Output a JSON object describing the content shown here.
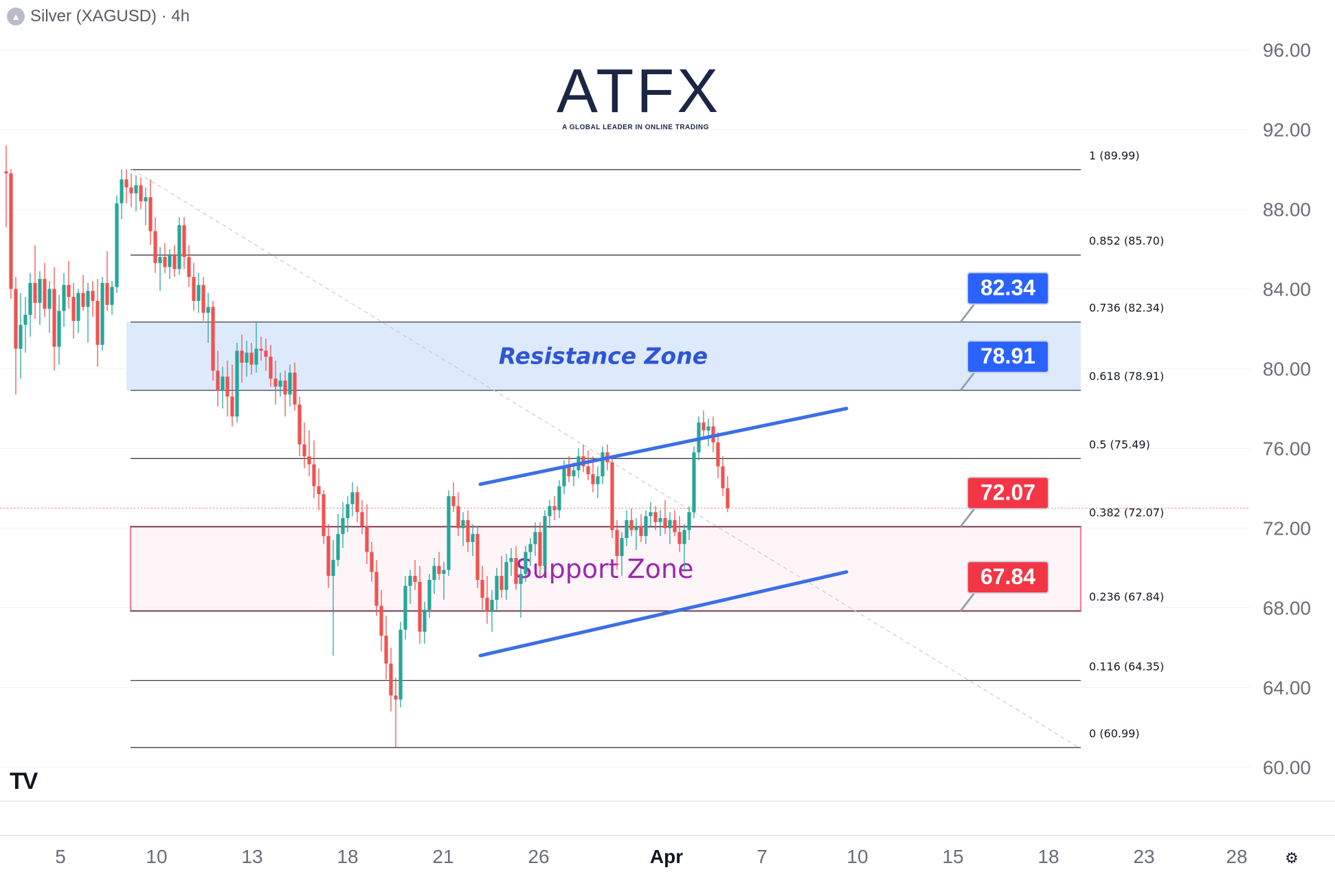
{
  "header": {
    "symbol": "Silver (XAGUSD) · 4h"
  },
  "logo": {
    "name": "ATFX",
    "tagline": "A GLOBAL LEADER IN ONLINE TRADING"
  },
  "colors": {
    "up": "#26a69a",
    "down": "#ef5350",
    "channel": "#3b6fe6",
    "resistance_fill": "#d6e6fb",
    "support_border": "#e0245e",
    "label_blue": "#2962ff",
    "label_red": "#f23645"
  },
  "chart_data": {
    "type": "candlestick",
    "title": "Silver (XAGUSD) · 4h",
    "y_axis": {
      "ticks": [
        "96.00",
        "92.00",
        "88.00",
        "84.00",
        "80.00",
        "76.00",
        "72.00",
        "68.00",
        "64.00",
        "60.00"
      ],
      "min": 59.0,
      "max": 97.5,
      "side": "right"
    },
    "x_axis": {
      "ticks": [
        "5",
        "10",
        "13",
        "18",
        "21",
        "26",
        "Apr",
        "7",
        "10",
        "15",
        "18",
        "23",
        "28"
      ]
    },
    "fib_levels": [
      {
        "label": "1 (89.99)",
        "value": 89.99
      },
      {
        "label": "0.852 (85.70)",
        "value": 85.7
      },
      {
        "label": "0.736 (82.34)",
        "value": 82.34
      },
      {
        "label": "0.618 (78.91)",
        "value": 78.91
      },
      {
        "label": "0.5 (75.49)",
        "value": 75.49
      },
      {
        "label": "0.382 (72.07)",
        "value": 72.07
      },
      {
        "label": "0.236 (67.84)",
        "value": 67.84
      },
      {
        "label": "0.116 (64.35)",
        "value": 64.35
      },
      {
        "label": "0 (60.99)",
        "value": 60.99
      }
    ],
    "zones": [
      {
        "label": "Resistance Zone",
        "low": 78.91,
        "high": 82.34,
        "style": "resistance"
      },
      {
        "label": "Support Zone",
        "low": 67.84,
        "high": 72.07,
        "style": "support"
      }
    ],
    "price_labels": [
      {
        "text": "82.34",
        "value": 82.34,
        "color": "blue"
      },
      {
        "text": "78.91",
        "value": 78.91,
        "color": "blue"
      },
      {
        "text": "72.07",
        "value": 72.07,
        "color": "red"
      },
      {
        "text": "67.84",
        "value": 67.84,
        "color": "red"
      }
    ],
    "current_price": 73.0,
    "channel": {
      "upper": [
        {
          "t": 69,
          "v": 74.2
        },
        {
          "t": 123,
          "v": 78.0
        }
      ],
      "lower": [
        {
          "t": 69,
          "v": 65.6
        },
        {
          "t": 123,
          "v": 69.8
        }
      ]
    },
    "trendline": [
      {
        "t": 19,
        "v": 90.0
      },
      {
        "t": 157,
        "v": 61.0
      }
    ],
    "candles": [
      [
        0,
        89.9,
        91.2,
        87.1,
        89.8
      ],
      [
        1,
        89.8,
        90.0,
        83.5,
        84.0
      ],
      [
        2,
        84.0,
        84.6,
        78.7,
        81.0
      ],
      [
        3,
        81.0,
        83.8,
        79.5,
        82.2
      ],
      [
        4,
        82.2,
        83.6,
        80.8,
        82.7
      ],
      [
        5,
        82.7,
        84.8,
        81.6,
        84.3
      ],
      [
        6,
        84.3,
        86.2,
        82.5,
        83.3
      ],
      [
        7,
        83.3,
        84.9,
        82.2,
        84.5
      ],
      [
        8,
        84.5,
        85.3,
        82.6,
        83.0
      ],
      [
        9,
        83.0,
        84.4,
        81.8,
        84.0
      ],
      [
        10,
        84.0,
        85.1,
        79.9,
        81.1
      ],
      [
        11,
        81.1,
        83.7,
        80.2,
        82.9
      ],
      [
        12,
        82.9,
        84.8,
        82.1,
        84.2
      ],
      [
        13,
        84.2,
        85.4,
        83.0,
        83.6
      ],
      [
        14,
        83.6,
        84.3,
        81.5,
        82.4
      ],
      [
        15,
        82.4,
        84.0,
        81.8,
        83.8
      ],
      [
        16,
        83.8,
        84.7,
        82.9,
        83.1
      ],
      [
        17,
        83.1,
        84.3,
        81.3,
        83.9
      ],
      [
        18,
        83.9,
        84.4,
        82.6,
        83.4
      ],
      [
        19,
        83.4,
        84.5,
        80.1,
        81.2
      ],
      [
        20,
        81.2,
        84.6,
        80.9,
        84.3
      ],
      [
        21,
        84.3,
        85.9,
        82.9,
        83.2
      ],
      [
        22,
        83.2,
        84.4,
        82.7,
        84.1
      ],
      [
        23,
        84.1,
        88.7,
        83.8,
        88.3
      ],
      [
        24,
        88.3,
        90.0,
        87.5,
        89.5
      ],
      [
        25,
        89.5,
        90.0,
        88.3,
        89.1
      ],
      [
        26,
        89.1,
        89.8,
        88.1,
        88.8
      ],
      [
        27,
        88.8,
        89.7,
        87.9,
        89.2
      ],
      [
        28,
        89.2,
        89.6,
        88.0,
        88.4
      ],
      [
        29,
        88.4,
        89.1,
        87.2,
        88.6
      ],
      [
        30,
        88.6,
        89.5,
        86.2,
        86.9
      ],
      [
        31,
        86.9,
        87.6,
        84.8,
        85.3
      ],
      [
        32,
        85.3,
        86.1,
        83.9,
        85.6
      ],
      [
        33,
        85.6,
        86.3,
        84.8,
        85.1
      ],
      [
        34,
        85.1,
        86.0,
        84.5,
        85.7
      ],
      [
        35,
        85.7,
        86.2,
        84.6,
        85.0
      ],
      [
        36,
        85.0,
        87.6,
        84.7,
        87.2
      ],
      [
        37,
        87.2,
        87.6,
        85.0,
        85.6
      ],
      [
        38,
        85.6,
        86.2,
        84.1,
        84.6
      ],
      [
        39,
        84.6,
        85.3,
        82.9,
        83.4
      ],
      [
        40,
        83.4,
        84.8,
        82.8,
        84.2
      ],
      [
        41,
        84.2,
        84.6,
        82.4,
        82.8
      ],
      [
        42,
        82.8,
        83.8,
        81.3,
        83.1
      ],
      [
        43,
        83.1,
        83.4,
        79.4,
        79.9
      ],
      [
        44,
        79.9,
        80.9,
        78.1,
        78.9
      ],
      [
        45,
        78.9,
        80.1,
        78.0,
        79.6
      ],
      [
        46,
        79.6,
        80.4,
        77.6,
        78.6
      ],
      [
        47,
        78.6,
        80.2,
        77.1,
        77.6
      ],
      [
        48,
        77.6,
        81.3,
        77.3,
        80.9
      ],
      [
        49,
        80.9,
        81.7,
        79.3,
        80.3
      ],
      [
        50,
        80.3,
        81.4,
        79.6,
        80.8
      ],
      [
        51,
        80.8,
        81.3,
        79.7,
        80.2
      ],
      [
        52,
        80.2,
        82.3,
        79.8,
        81.0
      ],
      [
        53,
        81.0,
        81.6,
        80.4,
        80.9
      ],
      [
        54,
        80.9,
        81.5,
        79.9,
        80.6
      ],
      [
        55,
        80.6,
        81.2,
        79.1,
        79.5
      ],
      [
        56,
        79.5,
        80.4,
        78.2,
        79.1
      ],
      [
        57,
        79.1,
        79.8,
        78.6,
        79.4
      ],
      [
        58,
        79.4,
        79.9,
        77.6,
        78.7
      ],
      [
        59,
        78.7,
        80.2,
        78.1,
        79.8
      ],
      [
        60,
        79.8,
        80.3,
        77.9,
        78.2
      ],
      [
        61,
        78.2,
        78.6,
        75.6,
        76.2
      ],
      [
        62,
        76.2,
        77.3,
        75.0,
        75.6
      ],
      [
        63,
        75.6,
        76.9,
        74.6,
        75.2
      ],
      [
        64,
        75.2,
        76.4,
        73.5,
        74.1
      ],
      [
        65,
        74.1,
        75.0,
        72.9,
        73.7
      ],
      [
        66,
        73.7,
        73.9,
        71.2,
        71.6
      ],
      [
        67,
        71.6,
        72.2,
        69.0,
        69.6
      ],
      [
        68,
        69.6,
        71.4,
        65.6,
        70.4
      ],
      [
        69,
        70.4,
        72.7,
        70.1,
        71.7
      ],
      [
        70,
        71.7,
        73.3,
        71.0,
        72.5
      ],
      [
        71,
        72.5,
        73.6,
        71.8,
        73.2
      ],
      [
        72,
        73.2,
        74.3,
        72.6,
        73.8
      ],
      [
        73,
        73.8,
        74.1,
        72.3,
        72.8
      ],
      [
        74,
        72.8,
        73.4,
        71.7,
        72.1
      ],
      [
        75,
        72.1,
        73.2,
        70.2,
        70.8
      ],
      [
        76,
        70.8,
        71.3,
        69.3,
        69.8
      ],
      [
        77,
        69.8,
        70.4,
        67.6,
        68.1
      ],
      [
        78,
        68.1,
        68.9,
        65.8,
        66.6
      ],
      [
        79,
        66.6,
        67.6,
        64.4,
        65.2
      ],
      [
        80,
        65.2,
        66.0,
        62.8,
        63.6
      ],
      [
        81,
        63.6,
        64.5,
        61.0,
        63.4
      ],
      [
        82,
        63.4,
        67.3,
        63.0,
        66.9
      ],
      [
        83,
        66.9,
        69.6,
        66.4,
        69.1
      ],
      [
        84,
        69.1,
        69.9,
        68.2,
        69.6
      ],
      [
        85,
        69.6,
        70.4,
        68.9,
        69.3
      ],
      [
        86,
        69.3,
        70.1,
        66.2,
        66.8
      ],
      [
        87,
        66.8,
        68.3,
        66.2,
        67.9
      ],
      [
        88,
        67.9,
        69.7,
        67.5,
        69.4
      ],
      [
        89,
        69.4,
        70.5,
        68.7,
        70.1
      ],
      [
        90,
        70.1,
        70.8,
        69.4,
        69.7
      ],
      [
        91,
        69.7,
        70.3,
        68.4,
        69.9
      ],
      [
        92,
        69.9,
        73.9,
        69.6,
        73.6
      ],
      [
        93,
        73.6,
        74.3,
        72.8,
        73.1
      ],
      [
        94,
        73.1,
        73.8,
        71.6,
        72.0
      ],
      [
        95,
        72.0,
        72.8,
        71.1,
        72.4
      ],
      [
        96,
        72.4,
        72.9,
        70.8,
        71.3
      ],
      [
        97,
        71.3,
        72.2,
        70.6,
        71.7
      ],
      [
        98,
        71.7,
        72.1,
        69.0,
        69.4
      ],
      [
        99,
        69.4,
        70.1,
        67.9,
        68.5
      ],
      [
        100,
        68.5,
        69.6,
        67.2,
        67.8
      ],
      [
        101,
        67.8,
        68.9,
        66.8,
        68.4
      ],
      [
        102,
        68.4,
        70.0,
        67.9,
        69.6
      ],
      [
        103,
        69.6,
        70.6,
        68.5,
        68.9
      ],
      [
        104,
        68.9,
        70.7,
        68.4,
        70.3
      ],
      [
        105,
        70.3,
        71.0,
        69.6,
        70.5
      ],
      [
        106,
        70.5,
        71.1,
        68.9,
        69.2
      ],
      [
        107,
        69.2,
        70.0,
        67.5,
        69.7
      ],
      [
        108,
        69.7,
        71.1,
        69.3,
        70.8
      ],
      [
        109,
        70.8,
        71.5,
        70.1,
        71.2
      ],
      [
        110,
        71.2,
        72.3,
        70.6,
        71.8
      ],
      [
        111,
        71.8,
        72.3,
        69.6,
        70.1
      ],
      [
        112,
        70.1,
        72.9,
        69.8,
        72.6
      ],
      [
        113,
        72.6,
        73.4,
        72.0,
        73.1
      ],
      [
        114,
        73.1,
        73.6,
        72.4,
        72.9
      ],
      [
        115,
        72.9,
        74.4,
        72.5,
        74.1
      ],
      [
        116,
        74.1,
        75.4,
        73.7,
        75.1
      ],
      [
        117,
        75.1,
        75.6,
        74.3,
        74.6
      ],
      [
        118,
        74.6,
        75.3,
        74.1,
        74.9
      ],
      [
        119,
        74.9,
        76.0,
        74.5,
        75.6
      ],
      [
        120,
        75.6,
        76.2,
        74.8,
        75.1
      ],
      [
        121,
        75.1,
        75.9,
        74.4,
        74.7
      ],
      [
        122,
        74.7,
        75.6,
        73.8,
        74.2
      ],
      [
        123,
        74.2,
        75.1,
        73.5,
        74.6
      ],
      [
        124,
        74.6,
        76.1,
        74.2,
        75.8
      ],
      [
        125,
        75.8,
        76.2,
        74.9,
        75.3
      ],
      [
        126,
        75.3,
        75.6,
        71.5,
        71.9
      ],
      [
        127,
        71.9,
        72.4,
        69.9,
        70.6
      ],
      [
        128,
        70.6,
        71.8,
        69.6,
        71.5
      ],
      [
        129,
        71.5,
        72.9,
        71.1,
        72.4
      ],
      [
        130,
        72.4,
        73.0,
        71.6,
        71.9
      ],
      [
        131,
        71.9,
        72.5,
        70.9,
        72.1
      ],
      [
        132,
        72.1,
        72.7,
        71.3,
        71.6
      ],
      [
        133,
        71.6,
        72.9,
        71.2,
        72.6
      ],
      [
        134,
        72.6,
        73.3,
        72.1,
        72.8
      ],
      [
        135,
        72.8,
        73.1,
        71.9,
        72.3
      ],
      [
        136,
        72.3,
        72.9,
        71.6,
        72.5
      ],
      [
        137,
        72.5,
        73.4,
        71.7,
        72.0
      ],
      [
        138,
        72.0,
        72.8,
        71.2,
        72.4
      ],
      [
        139,
        72.4,
        72.9,
        71.6,
        71.8
      ],
      [
        140,
        71.8,
        72.6,
        70.8,
        71.2
      ],
      [
        141,
        71.2,
        72.2,
        69.8,
        71.9
      ],
      [
        142,
        71.9,
        73.1,
        71.4,
        72.8
      ],
      [
        143,
        72.8,
        76.1,
        72.5,
        75.8
      ],
      [
        144,
        75.8,
        77.6,
        75.4,
        77.3
      ],
      [
        145,
        77.3,
        77.9,
        76.6,
        76.9
      ],
      [
        146,
        76.9,
        77.5,
        76.1,
        77.1
      ],
      [
        147,
        77.1,
        77.6,
        75.8,
        76.3
      ],
      [
        148,
        76.3,
        76.8,
        74.5,
        75.1
      ],
      [
        149,
        75.1,
        75.6,
        73.6,
        74.0
      ],
      [
        150,
        74.0,
        74.6,
        72.8,
        73.0
      ]
    ]
  }
}
